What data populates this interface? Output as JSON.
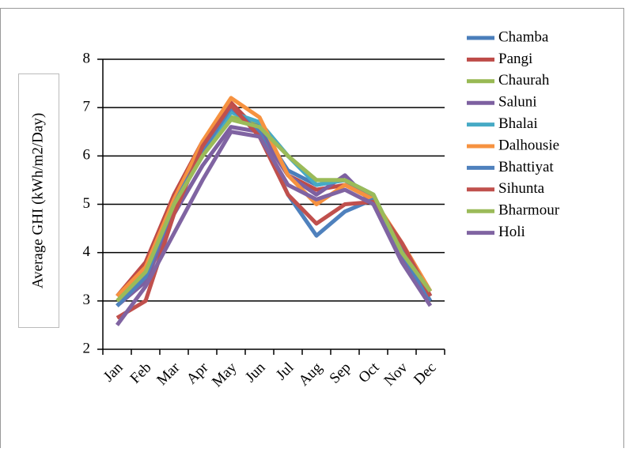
{
  "chart_data": {
    "type": "line",
    "y_label": "Average GHI (kWh/m2/Day)",
    "categories": [
      "Jan",
      "Feb",
      "Mar",
      "Apr",
      "May",
      "Jun",
      "Jul",
      "Aug",
      "Sep",
      "Oct",
      "Nov",
      "Dec"
    ],
    "ylim": [
      2,
      8
    ],
    "yticks": [
      2,
      3,
      4,
      5,
      6,
      7,
      8
    ],
    "grid": true,
    "legend": "right",
    "series": [
      {
        "name": "Chamba",
        "color": "#4a7ebb",
        "values": [
          2.9,
          3.5,
          5.1,
          6.2,
          7.0,
          6.6,
          5.7,
          5.4,
          5.5,
          5.1,
          4.1,
          3.1
        ]
      },
      {
        "name": "Pangi",
        "color": "#be4b48",
        "values": [
          3.1,
          3.8,
          5.2,
          6.3,
          7.1,
          6.5,
          5.6,
          5.3,
          5.4,
          5.1,
          4.2,
          3.2
        ]
      },
      {
        "name": "Chaurah",
        "color": "#98b954",
        "values": [
          3.0,
          3.6,
          5.0,
          6.0,
          6.8,
          6.7,
          6.0,
          5.5,
          5.5,
          5.2,
          4.0,
          3.2
        ]
      },
      {
        "name": "Saluni",
        "color": "#7d60a0",
        "values": [
          2.9,
          3.4,
          4.8,
          5.8,
          6.6,
          6.5,
          5.6,
          5.2,
          5.6,
          5.0,
          3.9,
          3.0
        ]
      },
      {
        "name": "Bhalai",
        "color": "#46aac5",
        "values": [
          2.9,
          3.5,
          5.0,
          6.1,
          6.9,
          6.7,
          6.0,
          5.4,
          5.5,
          5.2,
          4.0,
          3.1
        ]
      },
      {
        "name": "Dalhousie",
        "color": "#f69240",
        "values": [
          3.1,
          3.7,
          5.1,
          6.3,
          7.2,
          6.8,
          5.6,
          5.0,
          5.4,
          5.1,
          4.2,
          3.2
        ]
      },
      {
        "name": "Bhattiyat",
        "color": "#4f81bd",
        "values": [
          2.9,
          3.5,
          5.0,
          6.1,
          7.0,
          6.5,
          5.2,
          4.35,
          4.85,
          5.1,
          4.0,
          3.0
        ]
      },
      {
        "name": "Sihunta",
        "color": "#c0504d",
        "values": [
          2.65,
          3.0,
          4.8,
          6.2,
          7.05,
          6.4,
          5.2,
          4.6,
          5.0,
          5.05,
          4.2,
          3.1
        ]
      },
      {
        "name": "Bharmour",
        "color": "#9bbb59",
        "values": [
          3.0,
          3.6,
          5.0,
          6.0,
          6.75,
          6.6,
          6.0,
          5.5,
          5.5,
          5.2,
          4.0,
          3.2
        ]
      },
      {
        "name": "Holi",
        "color": "#8064a2",
        "values": [
          2.5,
          3.3,
          4.4,
          5.5,
          6.5,
          6.4,
          5.4,
          5.1,
          5.3,
          5.0,
          3.8,
          2.9
        ]
      }
    ]
  }
}
